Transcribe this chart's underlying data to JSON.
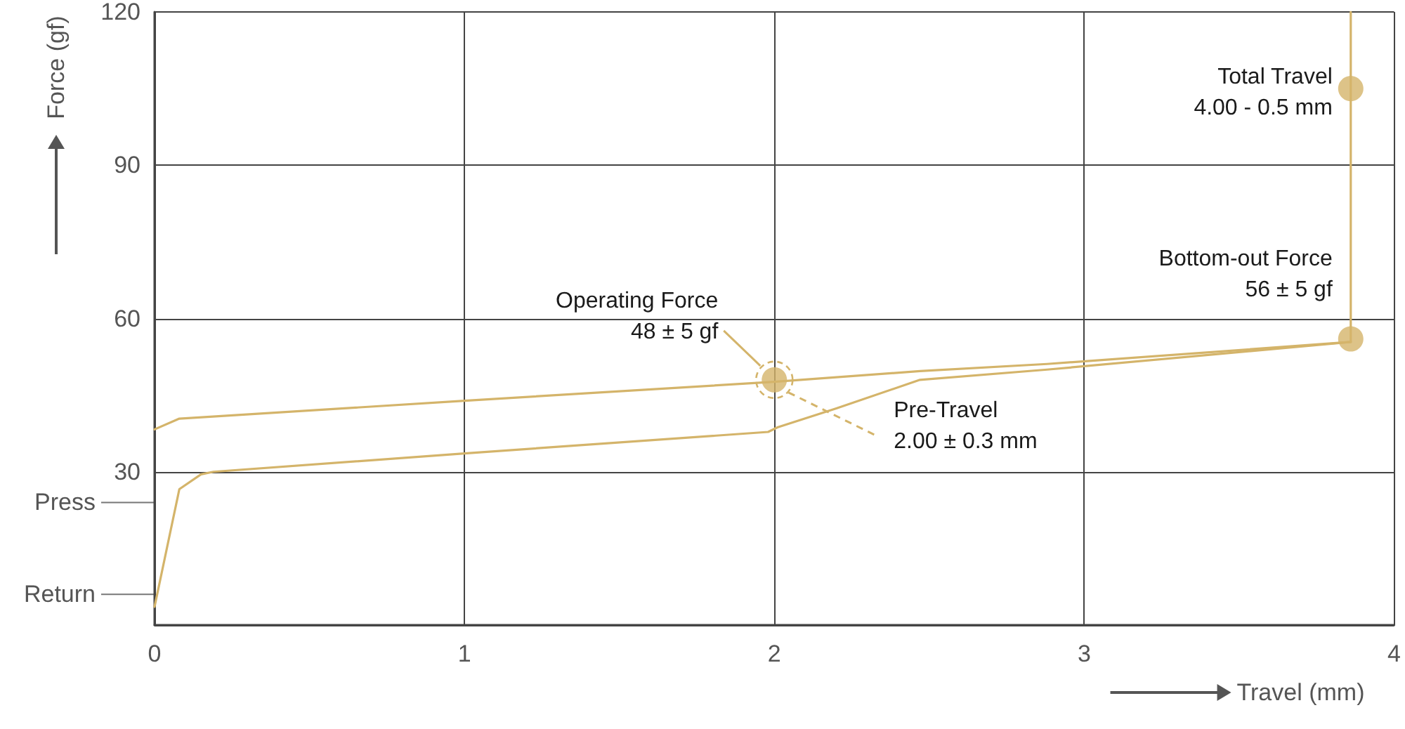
{
  "chart_data": {
    "type": "line",
    "xlabel": "Travel (mm)",
    "ylabel": "Force (gf)",
    "xlim": [
      0,
      4
    ],
    "xticks": [
      0,
      1,
      2,
      3,
      4
    ],
    "ylim": [
      0,
      120
    ],
    "yticks": [
      30,
      60,
      90,
      120
    ],
    "grid": true,
    "marker": "none",
    "line_style": "solid",
    "series": [
      {
        "color": "#d4b46a",
        "x": [
          0,
          0.08,
          0.15,
          0.19,
          1.0,
          1.98,
          2.01,
          2.2,
          2.47,
          2.88,
          3.86
        ],
        "values": [
          3.6,
          26.6,
          29.5,
          30,
          33.6,
          37.8,
          38.7,
          42.4,
          48,
          50,
          55.4
        ]
      },
      {
        "color": "#d4b46a",
        "x": [
          0,
          0.08,
          1.0,
          2.0,
          2.47,
          2.88,
          3.86
        ],
        "values": [
          38.3,
          40.4,
          43.9,
          47.6,
          49.7,
          51.1,
          55.4
        ]
      },
      {
        "color": "#d4b46a",
        "x": [
          3.86,
          3.86
        ],
        "values": [
          55.4,
          120
        ]
      },
      {
        "type": "scatter",
        "marker": "circle",
        "color": "#d4b46a",
        "x": [
          2,
          3.86,
          3.86
        ],
        "values": [
          48,
          56,
          105
        ]
      }
    ],
    "ref_lines": [
      {
        "axis": "y",
        "value": 24,
        "label": "Press"
      },
      {
        "axis": "y",
        "value": 6,
        "label": "Return"
      }
    ],
    "annotations": [
      "Operating Force\n48 ± 5 gf",
      "Pre-Travel\n2.00 ± 0.3 mm",
      "Bottom-out Force\n56 ± 5 gf",
      "Total Travel\n4.00 - 0.5 mm"
    ]
  }
}
